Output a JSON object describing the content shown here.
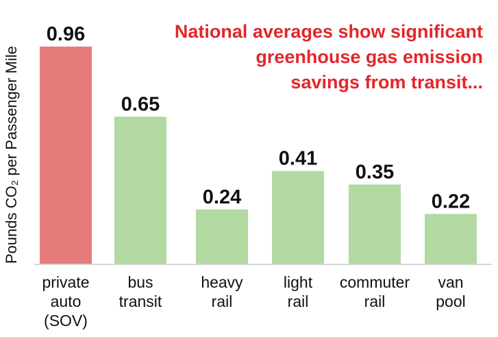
{
  "chart_data": {
    "type": "bar",
    "title_lines": [
      "National averages show significant",
      "greenhouse gas emission",
      "savings from transit..."
    ],
    "ylabel": "Pounds CO₂ per Passenger Mile",
    "xlabel": "",
    "ylim": [
      0,
      0.96
    ],
    "grid": false,
    "legend": "none",
    "categories": [
      [
        "private",
        "auto",
        "(SOV)"
      ],
      [
        "bus",
        "transit"
      ],
      [
        "heavy",
        "rail"
      ],
      [
        "light",
        "rail"
      ],
      [
        "commuter",
        "rail"
      ],
      [
        "van",
        "pool"
      ]
    ],
    "values": [
      0.96,
      0.65,
      0.24,
      0.41,
      0.35,
      0.22
    ],
    "value_labels": [
      "0.96",
      "0.65",
      "0.24",
      "0.41",
      "0.35",
      "0.22"
    ],
    "colors": [
      "#e57c7b",
      "#b1d9a1",
      "#b1d9a1",
      "#b1d9a1",
      "#b1d9a1",
      "#b1d9a1"
    ],
    "axis_color": "#d6d6d6",
    "title_color": "#e3262b"
  }
}
